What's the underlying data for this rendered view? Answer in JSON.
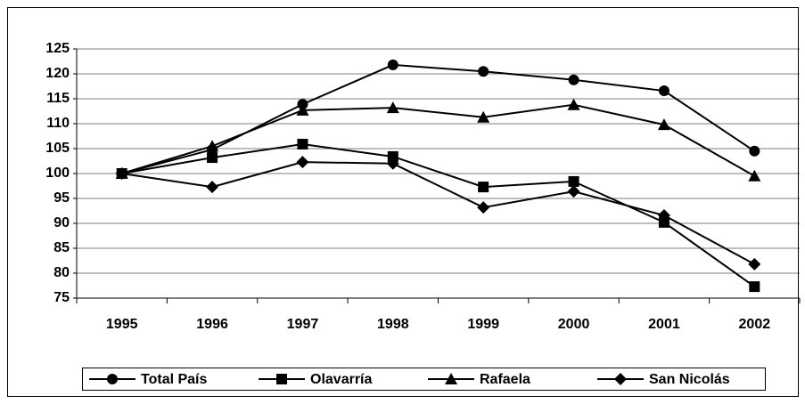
{
  "chart_data": {
    "type": "line",
    "categories": [
      "1995",
      "1996",
      "1997",
      "1998",
      "1999",
      "2000",
      "2001",
      "2002"
    ],
    "series": [
      {
        "name": "Total País",
        "color": "#000000",
        "marker": "circle",
        "values": [
          100,
          104.8,
          113.9,
          121.8,
          120.5,
          118.8,
          116.6,
          104.5
        ]
      },
      {
        "name": "Olavarría",
        "color": "#000000",
        "marker": "square",
        "values": [
          100,
          103.2,
          105.9,
          103.4,
          97.3,
          98.4,
          90.2,
          77.3
        ]
      },
      {
        "name": "Rafaela",
        "color": "#000000",
        "marker": "triangle",
        "values": [
          100,
          105.5,
          112.7,
          113.2,
          111.3,
          113.8,
          109.8,
          99.5
        ]
      },
      {
        "name": "San Nicolás",
        "color": "#000000",
        "marker": "diamond",
        "values": [
          100,
          97.3,
          102.3,
          102.0,
          93.2,
          96.4,
          91.6,
          81.8
        ]
      }
    ],
    "ylim": [
      75,
      125
    ],
    "yticks": [
      75,
      80,
      85,
      90,
      95,
      100,
      105,
      110,
      115,
      120,
      125
    ],
    "grid": true,
    "legend": "bottom"
  }
}
